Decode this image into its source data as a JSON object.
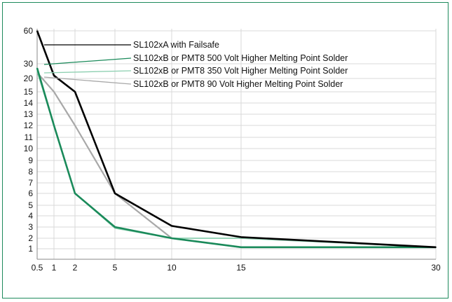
{
  "chart_data": {
    "type": "line",
    "title": "",
    "xlabel": "",
    "ylabel": "",
    "x_ticks": [
      "0.5",
      "1",
      "2",
      "5",
      "10",
      "15",
      "30"
    ],
    "y_ticks": [
      "1",
      "2",
      "3",
      "4",
      "5",
      "6",
      "7",
      "8",
      "9",
      "10",
      "11",
      "12",
      "13",
      "14",
      "15",
      "20",
      "30",
      "60"
    ],
    "grid": true,
    "legend_placement": "top-right",
    "series": [
      {
        "name": "SL102xA with Failsafe",
        "color": "#000000",
        "points": [
          {
            "x": "0.5",
            "y": 60
          },
          {
            "x": "1",
            "y": 22
          },
          {
            "x": "2",
            "y": 15
          },
          {
            "x": "5",
            "y": 6
          },
          {
            "x": "10",
            "y": 3.1
          },
          {
            "x": "15",
            "y": 2.1
          },
          {
            "x": "30",
            "y": 1.15
          }
        ]
      },
      {
        "name": "SL102xB or PMT8 500 Volt Higher Melting Point Solder",
        "color": "#1a8a5a",
        "points": [
          {
            "x": "0.5",
            "y": 27
          },
          {
            "x": "1",
            "y": 12
          },
          {
            "x": "2",
            "y": 6
          },
          {
            "x": "5",
            "y": 3
          },
          {
            "x": "10",
            "y": 2
          },
          {
            "x": "15",
            "y": 1.15
          },
          {
            "x": "30",
            "y": 1.15
          }
        ]
      },
      {
        "name": "SL102xB or PMT8 350 Volt Higher Melting Point Solder",
        "color": "#8ccfb0",
        "points": [
          {
            "x": "0.5",
            "y": 25
          },
          {
            "x": "1",
            "y": 12
          },
          {
            "x": "2",
            "y": 6
          },
          {
            "x": "5",
            "y": 2.9
          },
          {
            "x": "10",
            "y": 2
          },
          {
            "x": "15",
            "y": 2
          },
          {
            "x": "30",
            "y": 1.15
          }
        ]
      },
      {
        "name": "SL102xB or PMT8 90 Volt Higher Melting Point Solder",
        "color": "#a8a8a8",
        "points": [
          {
            "x": "0.5",
            "y": 24
          },
          {
            "x": "1",
            "y": 15
          },
          {
            "x": "2",
            "y": 12
          },
          {
            "x": "5",
            "y": 6
          },
          {
            "x": "10",
            "y": 2
          },
          {
            "x": "15",
            "y": 1.15
          },
          {
            "x": "30",
            "y": 1.15
          }
        ]
      }
    ]
  }
}
